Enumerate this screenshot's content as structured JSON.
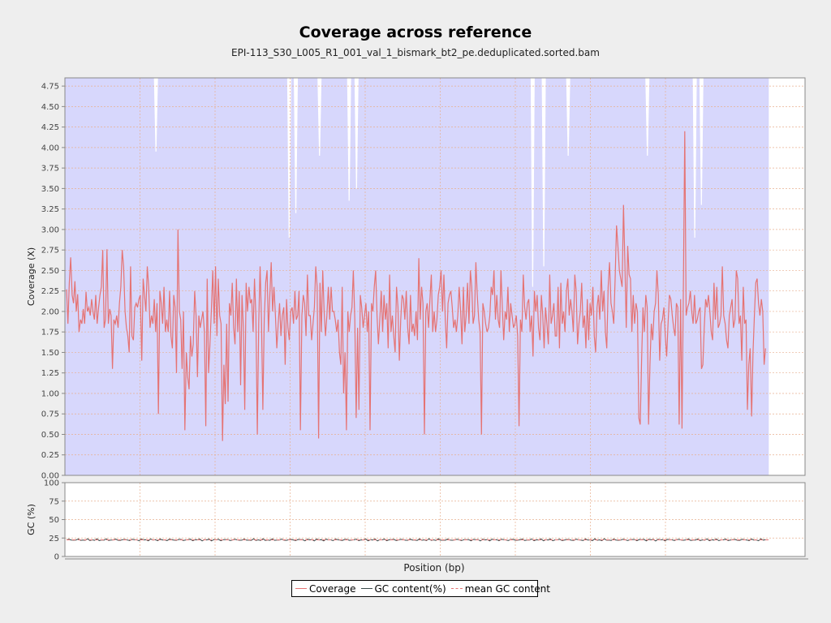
{
  "chart_data": [
    {
      "type": "line",
      "panel": "coverage",
      "title": "Coverage across reference",
      "subtitle": "EPI-113_S30_L005_R1_001_val_1_bismark_bt2_pe.deduplicated.sorted.bam",
      "ylabel": "Coverage (X)",
      "ylim": [
        0,
        4.85
      ],
      "yticks": [
        "0.00",
        "0.25",
        "0.50",
        "0.75",
        "1.00",
        "1.25",
        "1.50",
        "1.75",
        "2.00",
        "2.25",
        "2.50",
        "2.75",
        "3.00",
        "3.25",
        "3.50",
        "3.75",
        "4.00",
        "4.25",
        "4.50",
        "4.75"
      ],
      "grid": true,
      "background_color": "#d7d7fc",
      "series": [
        {
          "name": "Coverage",
          "color": "#e57373",
          "values": [
            2.27,
            1.85,
            2.35,
            2.66,
            2.2,
            2.1,
            2.37,
            2.0,
            2.21,
            1.75,
            1.9,
            1.85,
            2.03,
            1.85,
            2.24,
            2.0,
            2.05,
            1.95,
            2.15,
            2.0,
            1.9,
            2.2,
            1.85,
            2.05,
            2.2,
            2.3,
            2.75,
            1.8,
            1.9,
            2.76,
            1.85,
            2.03,
            1.95,
            1.3,
            1.9,
            1.85,
            1.95,
            1.8,
            2.1,
            2.3,
            2.75,
            2.55,
            2.0,
            1.8,
            1.7,
            1.5,
            2.55,
            1.7,
            1.65,
            2.05,
            2.1,
            2.05,
            2.15,
            2.2,
            1.4,
            2.4,
            2.2,
            2.0,
            2.55,
            2.3,
            1.8,
            1.95,
            1.85,
            2.15,
            1.75,
            2.1,
            0.75,
            2.25,
            2.1,
            1.85,
            2.3,
            1.75,
            1.9,
            1.75,
            2.25,
            1.7,
            1.55,
            2.2,
            2.05,
            1.25,
            3.0,
            2.0,
            1.9,
            1.3,
            2.0,
            0.55,
            1.5,
            1.2,
            1.05,
            1.7,
            1.45,
            1.6,
            2.25,
            1.95,
            1.2,
            1.95,
            1.8,
            1.9,
            2.0,
            1.75,
            0.6,
            2.4,
            1.25,
            1.6,
            2.0,
            2.5,
            1.85,
            2.55,
            1.7,
            2.4,
            1.95,
            1.85,
            0.42,
            1.35,
            0.87,
            1.85,
            0.9,
            2.1,
            1.95,
            2.35,
            1.8,
            1.6,
            2.4,
            1.75,
            2.25,
            1.1,
            2.2,
            1.8,
            0.8,
            2.35,
            2.0,
            2.3,
            2.1,
            2.15,
            1.75,
            2.4,
            1.95,
            0.5,
            1.85,
            2.55,
            1.9,
            0.8,
            1.9,
            2.35,
            2.5,
            1.75,
            2.2,
            2.6,
            2.0,
            2.3,
            1.95,
            1.55,
            1.85,
            2.1,
            1.7,
            1.95,
            2.05,
            1.35,
            2.15,
            1.8,
            1.65,
            2.0,
            2.05,
            1.85,
            2.25,
            1.9,
            1.95,
            2.25,
            0.55,
            1.95,
            2.2,
            2.1,
            1.7,
            2.45,
            1.95,
            1.95,
            1.65,
            1.85,
            2.05,
            2.55,
            2.3,
            0.45,
            2.35,
            1.75,
            2.5,
            2.0,
            1.7,
            1.95,
            2.3,
            1.9,
            2.3,
            2.0,
            2.0,
            1.9,
            1.75,
            1.9,
            1.5,
            1.35,
            2.3,
            1.0,
            1.5,
            0.55,
            2.0,
            1.75,
            1.95,
            2.05,
            2.5,
            1.9,
            0.7,
            1.8,
            0.8,
            2.2,
            2.05,
            1.8,
            1.95,
            2.1,
            1.75,
            2.0,
            0.55,
            2.1,
            2.0,
            2.3,
            2.5,
            1.95,
            1.6,
            1.9,
            2.25,
            1.75,
            2.2,
            1.9,
            2.1,
            1.55,
            2.45,
            1.75,
            1.95,
            1.7,
            1.5,
            2.3,
            2.05,
            1.4,
            1.9,
            2.2,
            2.15,
            1.9,
            2.25,
            1.8,
            1.6,
            2.2,
            1.75,
            1.85,
            1.7,
            2.0,
            1.65,
            2.65,
            1.9,
            2.3,
            2.1,
            0.5,
            2.0,
            2.1,
            1.8,
            2.15,
            2.45,
            1.75,
            2.0,
            1.75,
            1.9,
            2.2,
            2.3,
            2.5,
            2.0,
            2.45,
            1.9,
            1.55,
            2.1,
            2.2,
            2.25,
            2.05,
            1.8,
            1.9,
            1.75,
            1.95,
            2.3,
            2.0,
            1.6,
            2.3,
            1.75,
            1.95,
            2.35,
            1.85,
            2.5,
            2.3,
            1.85,
            1.95,
            2.6,
            2.2,
            1.9,
            1.75,
            0.5,
            2.1,
            2.0,
            1.85,
            1.75,
            1.8,
            1.95,
            2.3,
            2.2,
            2.5,
            1.9,
            2.2,
            1.9,
            1.8,
            2.5,
            2.05,
            1.65,
            2.0,
            1.9,
            2.3,
            1.75,
            2.1,
            1.95,
            1.8,
            1.85,
            1.95,
            1.7,
            0.6,
            1.9,
            1.75,
            2.45,
            2.05,
            1.9,
            2.1,
            2.15,
            1.75,
            1.95,
            1.45,
            2.25,
            2.0,
            2.2,
            1.8,
            1.65,
            2.2,
            1.95,
            1.55,
            2.05,
            1.85,
            1.6,
            2.45,
            1.85,
            1.95,
            2.1,
            1.7,
            1.7,
            2.3,
            1.55,
            2.35,
            1.85,
            2.0,
            1.75,
            2.25,
            2.4,
            1.95,
            2.15,
            2.0,
            1.75,
            2.45,
            2.25,
            1.6,
            1.85,
            2.0,
            2.35,
            1.8,
            1.95,
            1.55,
            2.15,
            1.65,
            2.1,
            1.95,
            2.3,
            1.7,
            1.5,
            2.05,
            2.2,
            1.9,
            2.5,
            2.0,
            2.25,
            1.75,
            1.55,
            2.3,
            2.6,
            2.1,
            2.0,
            1.85,
            2.4,
            3.05,
            2.8,
            2.5,
            2.4,
            2.3,
            3.3,
            2.6,
            1.8,
            2.8,
            2.45,
            2.4,
            1.75,
            2.2,
            1.85,
            2.1,
            2.0,
            0.7,
            0.62,
            1.4,
            2.05,
            1.75,
            2.2,
            2.05,
            0.62,
            1.35,
            1.85,
            1.65,
            2.0,
            2.1,
            2.5,
            2.2,
            1.4,
            1.85,
            1.9,
            2.05,
            1.7,
            1.45,
            1.85,
            2.2,
            2.15,
            1.95,
            1.8,
            1.7,
            2.1,
            2.05,
            0.62,
            2.15,
            0.57,
            2.3,
            4.2,
            1.95,
            2.05,
            2.1,
            2.25,
            2.0,
            1.85,
            2.2,
            1.85,
            1.9,
            2.0,
            2.05,
            1.3,
            1.35,
            1.8,
            2.15,
            2.05,
            2.2,
            2.0,
            1.75,
            1.65,
            2.35,
            1.9,
            2.3,
            1.8,
            1.85,
            1.95,
            2.55,
            1.95,
            1.85,
            1.65,
            1.55,
            1.95,
            2.05,
            2.15,
            1.8,
            1.9,
            2.5,
            2.4,
            1.85,
            1.95,
            1.4,
            2.3,
            1.85,
            1.9,
            0.8,
            1.35,
            1.55,
            0.72,
            1.5,
            1.95,
            2.35,
            2.4,
            2.1,
            1.95,
            2.15,
            2.0,
            1.35,
            1.55
          ]
        }
      ],
      "white_dropouts": [
        {
          "x": 0.123,
          "top": 3.95
        },
        {
          "x": 0.303,
          "top": 2.9
        },
        {
          "x": 0.312,
          "top": 3.2
        },
        {
          "x": 0.344,
          "top": 3.9
        },
        {
          "x": 0.384,
          "top": 3.35
        },
        {
          "x": 0.394,
          "top": 3.5
        },
        {
          "x": 0.632,
          "top": 2.3
        },
        {
          "x": 0.647,
          "top": 2.55
        },
        {
          "x": 0.68,
          "top": 3.9
        },
        {
          "x": 0.787,
          "top": 3.9
        },
        {
          "x": 0.851,
          "top": 2.9
        },
        {
          "x": 0.86,
          "top": 3.3
        },
        {
          "x": 0.954,
          "top": 3.9
        }
      ],
      "data_end_fraction": 0.951
    },
    {
      "type": "line",
      "panel": "gc",
      "ylabel": "GC (%)",
      "xlabel": "Position (bp)",
      "ylim": [
        0,
        100
      ],
      "yticks": [
        "0",
        "25",
        "50",
        "75",
        "100"
      ],
      "grid": true,
      "series": [
        {
          "name": "GC content(%)",
          "color": "#3a4a4a",
          "mean": 22.5,
          "noise_amplitude": 1.5
        },
        {
          "name": "mean GC content",
          "color": "#e57373",
          "dashed": true,
          "value": 22.5
        }
      ]
    }
  ],
  "legend": [
    {
      "label": "Coverage",
      "color": "#e57373",
      "style": "solid"
    },
    {
      "label": "GC content(%)",
      "color": "#3a4a4a",
      "style": "solid"
    },
    {
      "label": "mean GC content",
      "color": "#e57373",
      "style": "dashed"
    }
  ]
}
